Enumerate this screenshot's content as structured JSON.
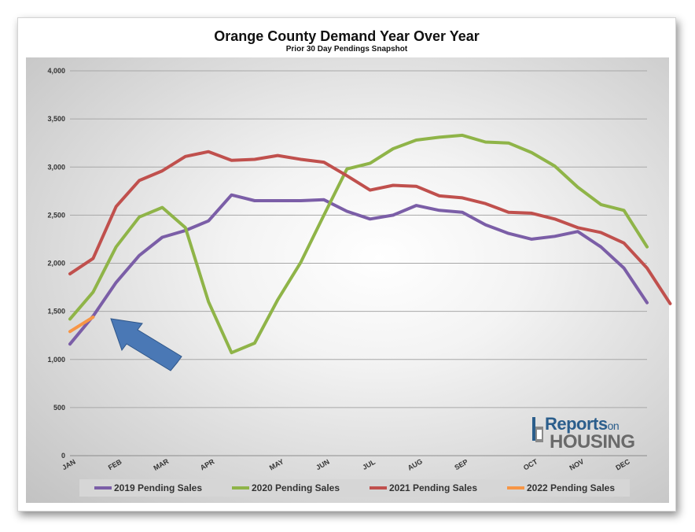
{
  "chart_data": {
    "type": "line",
    "title": "Orange County Demand Year Over Year",
    "subtitle": "Prior 30 Day Pendings Snapshot",
    "ylim": [
      0,
      4000
    ],
    "yticks": [
      0,
      500,
      1000,
      1500,
      2000,
      2500,
      3000,
      3500,
      4000
    ],
    "ytick_labels": [
      "0",
      "500",
      "1,000",
      "1,500",
      "2,000",
      "2,500",
      "3,000",
      "3,500",
      "4,000"
    ],
    "xlim": [
      0,
      25
    ],
    "month_ticks": [
      {
        "label": "JAN",
        "x": 0
      },
      {
        "label": "FEB",
        "x": 2
      },
      {
        "label": "MAR",
        "x": 4
      },
      {
        "label": "APR",
        "x": 6
      },
      {
        "label": "MAY",
        "x": 9
      },
      {
        "label": "JUN",
        "x": 11
      },
      {
        "label": "JUL",
        "x": 13
      },
      {
        "label": "AUG",
        "x": 15
      },
      {
        "label": "SEP",
        "x": 17
      },
      {
        "label": "OCT",
        "x": 20
      },
      {
        "label": "NOV",
        "x": 22
      },
      {
        "label": "DEC",
        "x": 24
      }
    ],
    "series": [
      {
        "name": "2019 Pending Sales",
        "color": "#7b5ea7",
        "values": [
          1160,
          1450,
          1800,
          2080,
          2270,
          2340,
          2440,
          2710,
          2650,
          2650,
          2650,
          2660,
          2540,
          2460,
          2500,
          2600,
          2550,
          2530,
          2400,
          2310,
          2250,
          2280,
          2330,
          2170,
          1950,
          1590
        ]
      },
      {
        "name": "2020 Pending Sales",
        "color": "#8fb448",
        "values": [
          1420,
          1700,
          2170,
          2480,
          2580,
          2370,
          1600,
          1070,
          1170,
          1620,
          2010,
          2500,
          2980,
          3040,
          3190,
          3280,
          3310,
          3330,
          3260,
          3250,
          3150,
          3010,
          2790,
          2610,
          2550,
          2170
        ]
      },
      {
        "name": "2021 Pending Sales",
        "color": "#c0504d",
        "values": [
          1890,
          2050,
          2590,
          2860,
          2960,
          3110,
          3160,
          3070,
          3080,
          3120,
          3080,
          3050,
          2910,
          2760,
          2810,
          2800,
          2700,
          2680,
          2620,
          2530,
          2520,
          2460,
          2370,
          2320,
          2210,
          1950,
          1580
        ]
      },
      {
        "name": "2022 Pending Sales",
        "color": "#f79646",
        "values": [
          1290,
          1440
        ]
      }
    ],
    "annotation": "arrow pointing to latest 2022 value"
  }
}
